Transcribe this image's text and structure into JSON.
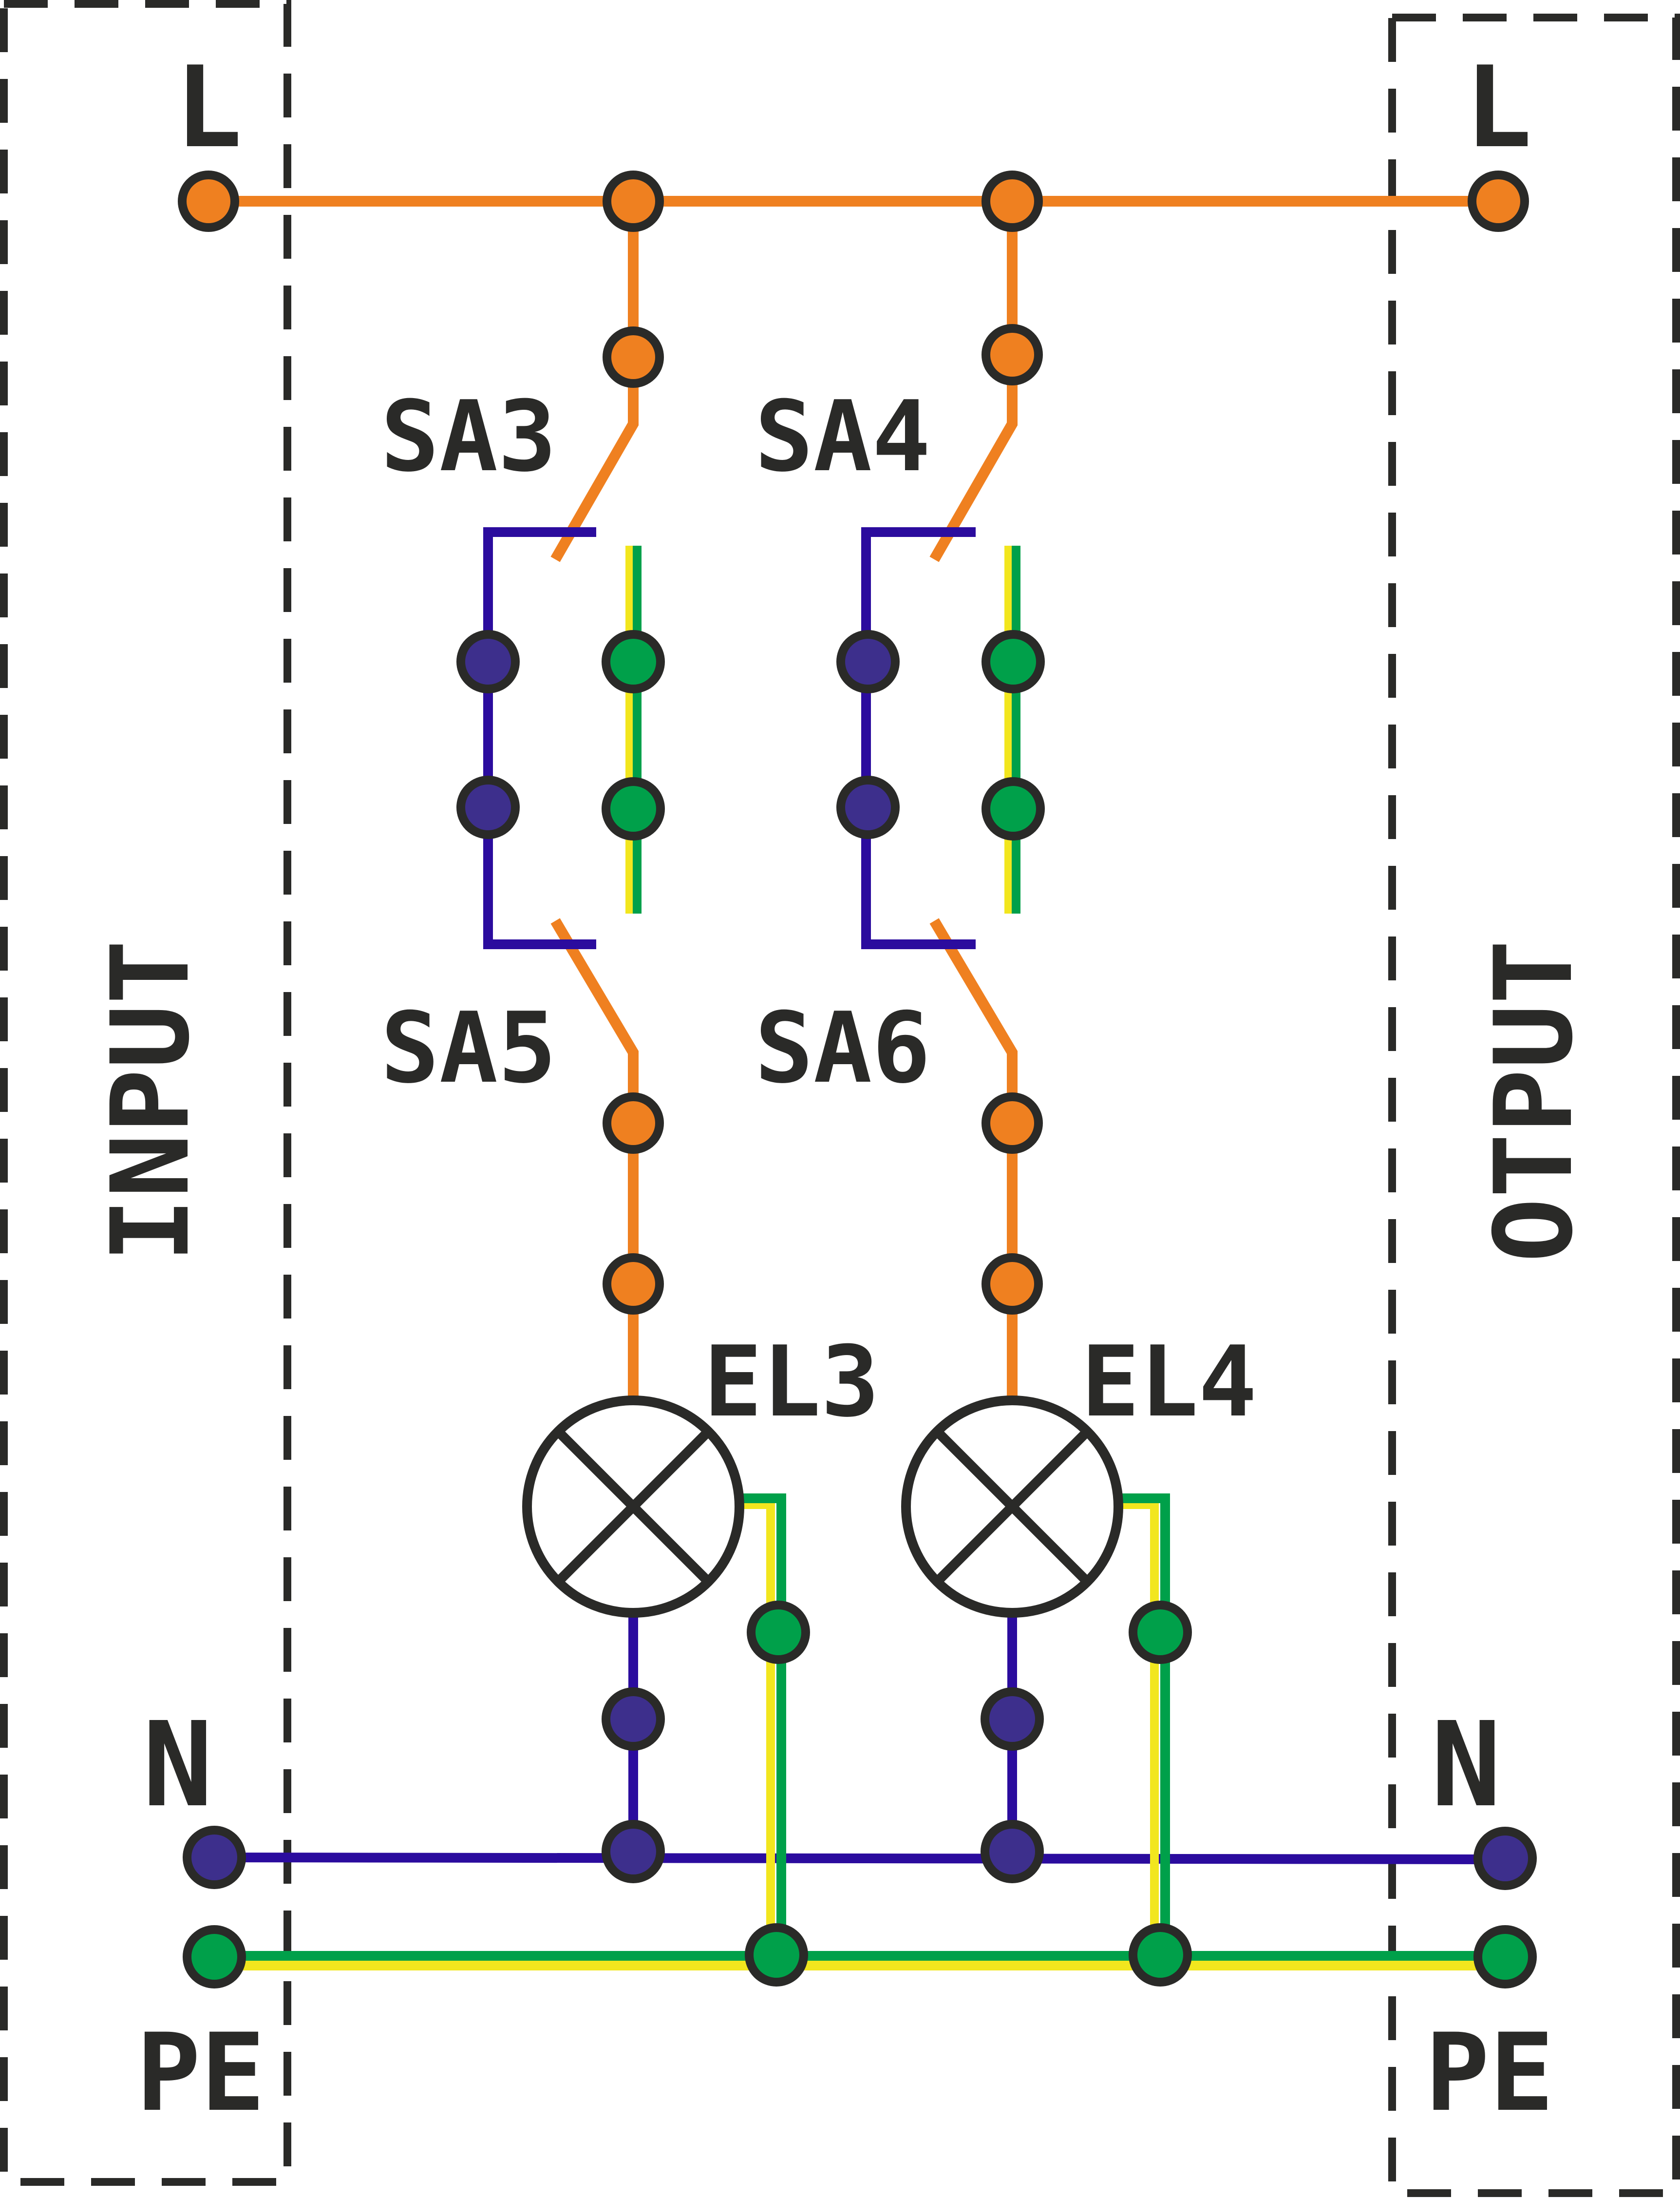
{
  "labels": {
    "input": "INPUT",
    "output": "OTPUT",
    "l_in": "L",
    "l_out": "L",
    "n_in": "N",
    "n_out": "N",
    "pe_in": "PE",
    "pe_out": "PE",
    "sa3": "SA3",
    "sa4": "SA4",
    "sa5": "SA5",
    "sa6": "SA6",
    "el3": "EL3",
    "el4": "EL4"
  },
  "colors": {
    "line": "#ef8020",
    "neutral": "#2b0c9e",
    "neutral_fill": "#3d2f8c",
    "earth_green": "#00a04a",
    "earth_yellow": "#f2e61e",
    "outline": "#2a2a28"
  }
}
